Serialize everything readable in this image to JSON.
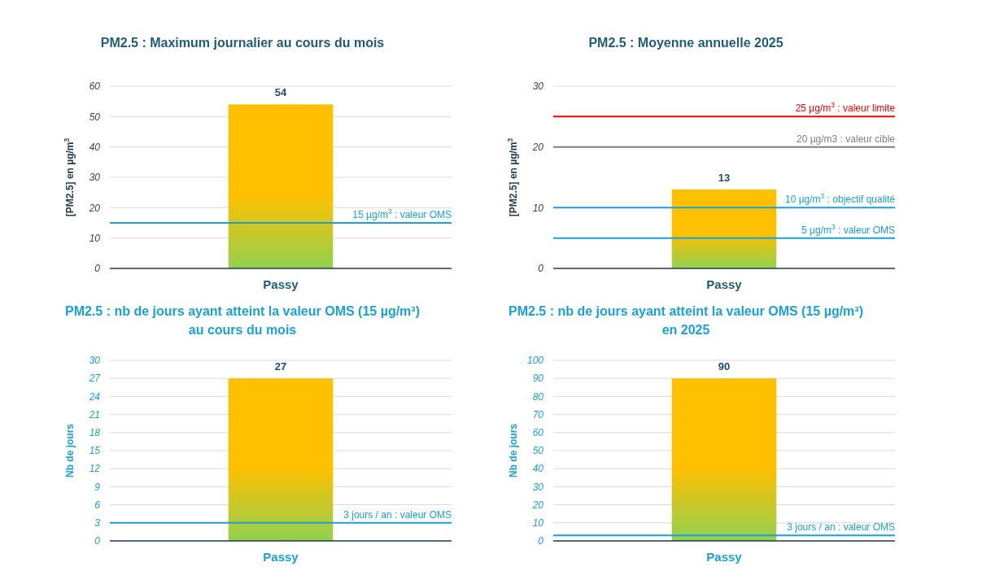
{
  "chart_data": [
    {
      "type": "bar",
      "title": "PM2.5 : Maximum journalier au cours du mois",
      "ylabel": "[PM2.5] en µg/m$^{3}$",
      "categories": [
        "Passy"
      ],
      "values": [
        54
      ],
      "color": "#ffc000",
      "ylim": [
        0,
        60
      ],
      "yticks": [
        0,
        10,
        20,
        30,
        40,
        50,
        60
      ],
      "grid": true,
      "data_labels": true,
      "ref_lines": [
        {
          "axis": "y",
          "value": 15,
          "label": "15 µg/m$^{3}$ : valeur OMS",
          "color": "#1ba1d8"
        }
      ]
    },
    {
      "type": "bar",
      "title": "PM2.5 : Moyenne annuelle 2025",
      "ylabel": "[PM2.5] en µg/m$^{3}$",
      "categories": [
        "Passy"
      ],
      "values": [
        13
      ],
      "color": "#ffc000",
      "ylim": [
        0,
        30
      ],
      "yticks": [
        0,
        10,
        20,
        30
      ],
      "grid": true,
      "data_labels": true,
      "ref_lines": [
        {
          "axis": "y",
          "value": 25,
          "label": "25 µg/m$^{3}$ : valeur limite",
          "color": "#ff0000"
        },
        {
          "axis": "y",
          "value": 20,
          "label": "20 µg/m3 : valeur cible",
          "color": "#7f7f7f"
        },
        {
          "axis": "y",
          "value": 10,
          "label": "10 µg/m$^{3}$ : objectif qualité",
          "color": "#1ba1d8"
        },
        {
          "axis": "y",
          "value": 5,
          "label": "5 µg/m$^{3}$ : valeur OMS",
          "color": "#1ba1d8"
        }
      ]
    },
    {
      "type": "bar",
      "title": "PM2.5 : nb de jours ayant atteint la valeur OMS (15 µg/m³) au cours du mois",
      "ylabel": "Nb de jours",
      "categories": [
        "Passy"
      ],
      "values": [
        27
      ],
      "color": "#ffc000",
      "ylim": [
        0,
        30
      ],
      "yticks": [
        0,
        3,
        6,
        9,
        12,
        15,
        18,
        21,
        24,
        27,
        30
      ],
      "grid": true,
      "data_labels": true,
      "ref_lines": [
        {
          "axis": "y",
          "value": 3,
          "label": "3 jours / an : valeur OMS",
          "color": "#1ba1d8"
        }
      ]
    },
    {
      "type": "bar",
      "title": "PM2.5 : nb de jours ayant atteint la valeur OMS (15 µg/m³) en 2025",
      "ylabel": "Nb de jours",
      "categories": [
        "Passy"
      ],
      "values": [
        90
      ],
      "color": "#ffc000",
      "ylim": [
        0,
        100
      ],
      "yticks": [
        0,
        10,
        20,
        30,
        40,
        50,
        60,
        70,
        80,
        90,
        100
      ],
      "grid": true,
      "data_labels": true,
      "ref_lines": [
        {
          "axis": "y",
          "value": 3,
          "label": "3 jours / an : valeur OMS",
          "color": "#1ba1d8"
        }
      ]
    }
  ]
}
